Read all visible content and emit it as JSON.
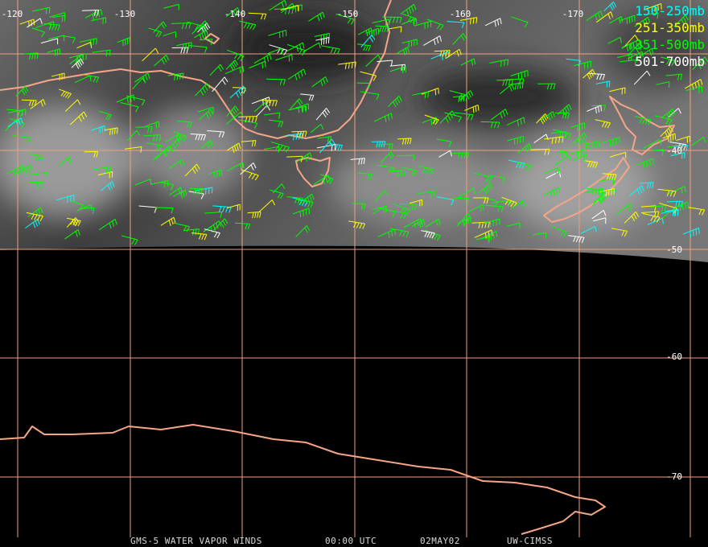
{
  "longitude_labels": [
    "-120",
    "-130",
    "-140",
    "-150",
    "-160",
    "-170"
  ],
  "latitude_labels": [
    "-40",
    "-50",
    "-60",
    "-70"
  ],
  "legend": [
    {
      "label": "150-250mb",
      "color": "#00ffff"
    },
    {
      "label": "251-350mb",
      "color": "#ffff00"
    },
    {
      "label": "351-500mb",
      "color": "#00ff00"
    },
    {
      "label": "501-700mb",
      "color": "#ffffff"
    }
  ],
  "footer": [
    "GMS-5 WATER VAPOR WINDS",
    "00:00 UTC",
    "02MAY02",
    "UW-CIMSS"
  ]
}
